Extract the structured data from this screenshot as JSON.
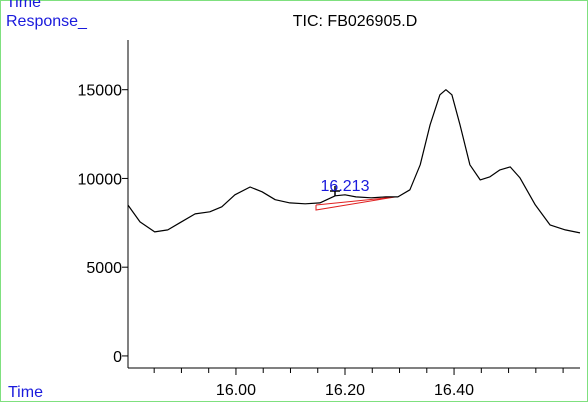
{
  "chart_data": {
    "type": "line",
    "header_label": "Time",
    "title": "TIC: FB026905.D",
    "y_label": "Response_",
    "x_label": "Time",
    "annotation": {
      "text": "16.213",
      "x": 16.2
    },
    "x": [
      15.802,
      15.824,
      15.851,
      15.875,
      15.897,
      15.925,
      15.952,
      15.974,
      15.998,
      16.026,
      16.048,
      16.072,
      16.099,
      16.127,
      16.154,
      16.182,
      16.2,
      16.22,
      16.248,
      16.275,
      16.297,
      16.319,
      16.338,
      16.356,
      16.374,
      16.385,
      16.396,
      16.411,
      16.429,
      16.448,
      16.466,
      16.484,
      16.503,
      16.521,
      16.549,
      16.576,
      16.604,
      16.631
    ],
    "values": [
      8500,
      7550,
      6990,
      7100,
      7500,
      8000,
      8120,
      8400,
      9080,
      9520,
      9250,
      8800,
      8620,
      8570,
      8620,
      9020,
      9080,
      8960,
      8910,
      8960,
      8960,
      9360,
      10770,
      13020,
      14710,
      15000,
      14710,
      13020,
      10770,
      9920,
      10090,
      10480,
      10650,
      10030,
      8510,
      7380,
      7100,
      6930
    ],
    "color": "#000000",
    "xlim": [
      15.802,
      16.631
    ],
    "xticks": [
      {
        "value": 16.0,
        "label": "16.00"
      },
      {
        "value": 16.2,
        "label": "16.20"
      },
      {
        "value": 16.4,
        "label": "16.40"
      }
    ],
    "xminor": [
      15.85,
      15.9,
      15.95,
      16.05,
      16.1,
      16.15,
      16.25,
      16.3,
      16.35,
      16.45,
      16.5,
      16.55,
      16.6
    ],
    "ylim": [
      -680,
      17800
    ],
    "yticks": [
      0,
      5000,
      10000,
      15000
    ]
  }
}
